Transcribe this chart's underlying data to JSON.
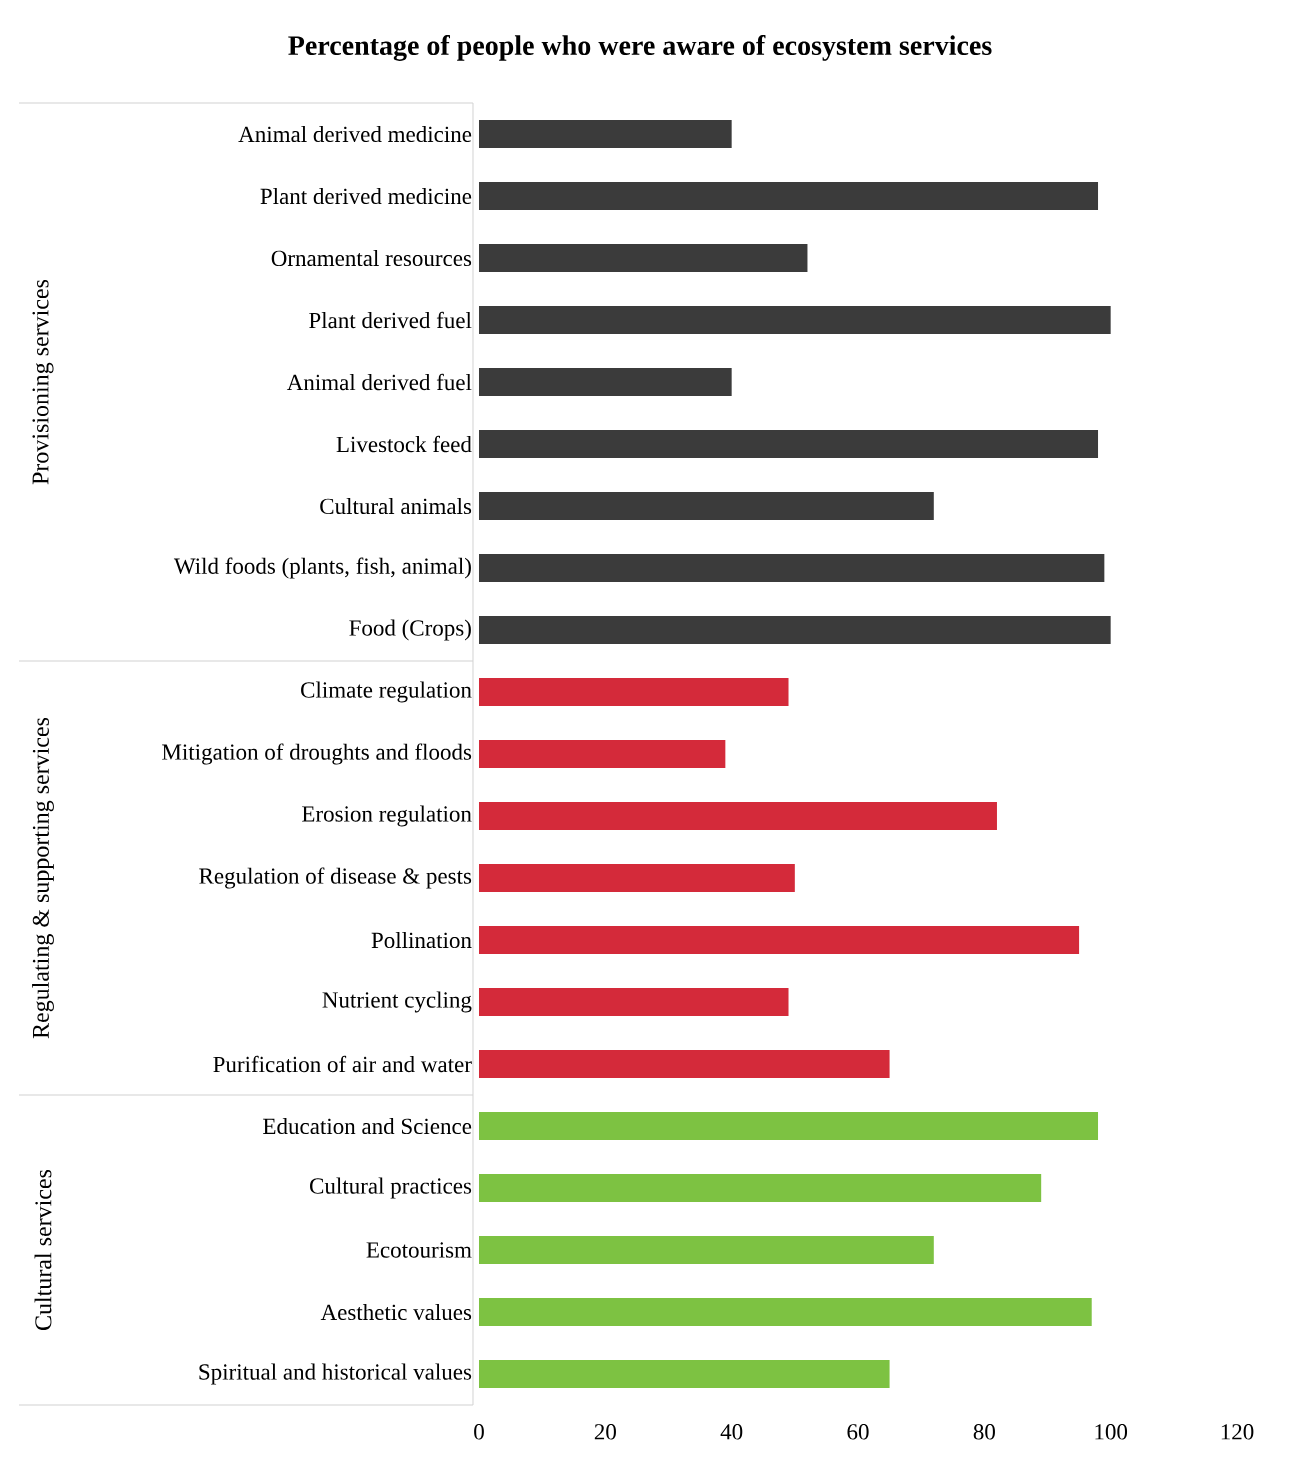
{
  "chart_data": {
    "type": "bar",
    "orientation": "horizontal",
    "title": "Percentage of people who were aware of ecosystem services",
    "categories": [
      "Animal derived medicine",
      "Plant derived medicine",
      "Ornamental resources",
      "Plant derived fuel",
      "Animal derived fuel",
      "Livestock feed",
      "Cultural animals",
      "Wild foods (plants, fish, animal)",
      "Food (Crops)",
      "Climate regulation",
      "Mitigation of droughts and floods",
      "Erosion regulation",
      "Regulation of disease & pests",
      "Pollination",
      "Nutrient cycling",
      "Purification of air and water",
      "Education and Science",
      "Cultural practices",
      "Ecotourism",
      "Aesthetic values",
      "Spiritual and historical values"
    ],
    "values": [
      40,
      98,
      52,
      100,
      40,
      98,
      72,
      99,
      100,
      49,
      39,
      82,
      50,
      95,
      49,
      65,
      98,
      89,
      72,
      97,
      65
    ],
    "colors": [
      "#3b3b3b",
      "#3b3b3b",
      "#3b3b3b",
      "#3b3b3b",
      "#3b3b3b",
      "#3b3b3b",
      "#3b3b3b",
      "#3b3b3b",
      "#3b3b3b",
      "#d42a3a",
      "#d42a3a",
      "#d42a3a",
      "#d42a3a",
      "#d42a3a",
      "#d42a3a",
      "#d42a3a",
      "#7dc242",
      "#7dc242",
      "#7dc242",
      "#7dc242",
      "#7dc242"
    ],
    "annotations": [
      "Provisioning services",
      "Regulating & supporting services",
      "Cultural services"
    ],
    "xlim": [
      0,
      120
    ],
    "xticks": [
      0,
      20,
      40,
      60,
      80,
      100,
      120
    ]
  }
}
